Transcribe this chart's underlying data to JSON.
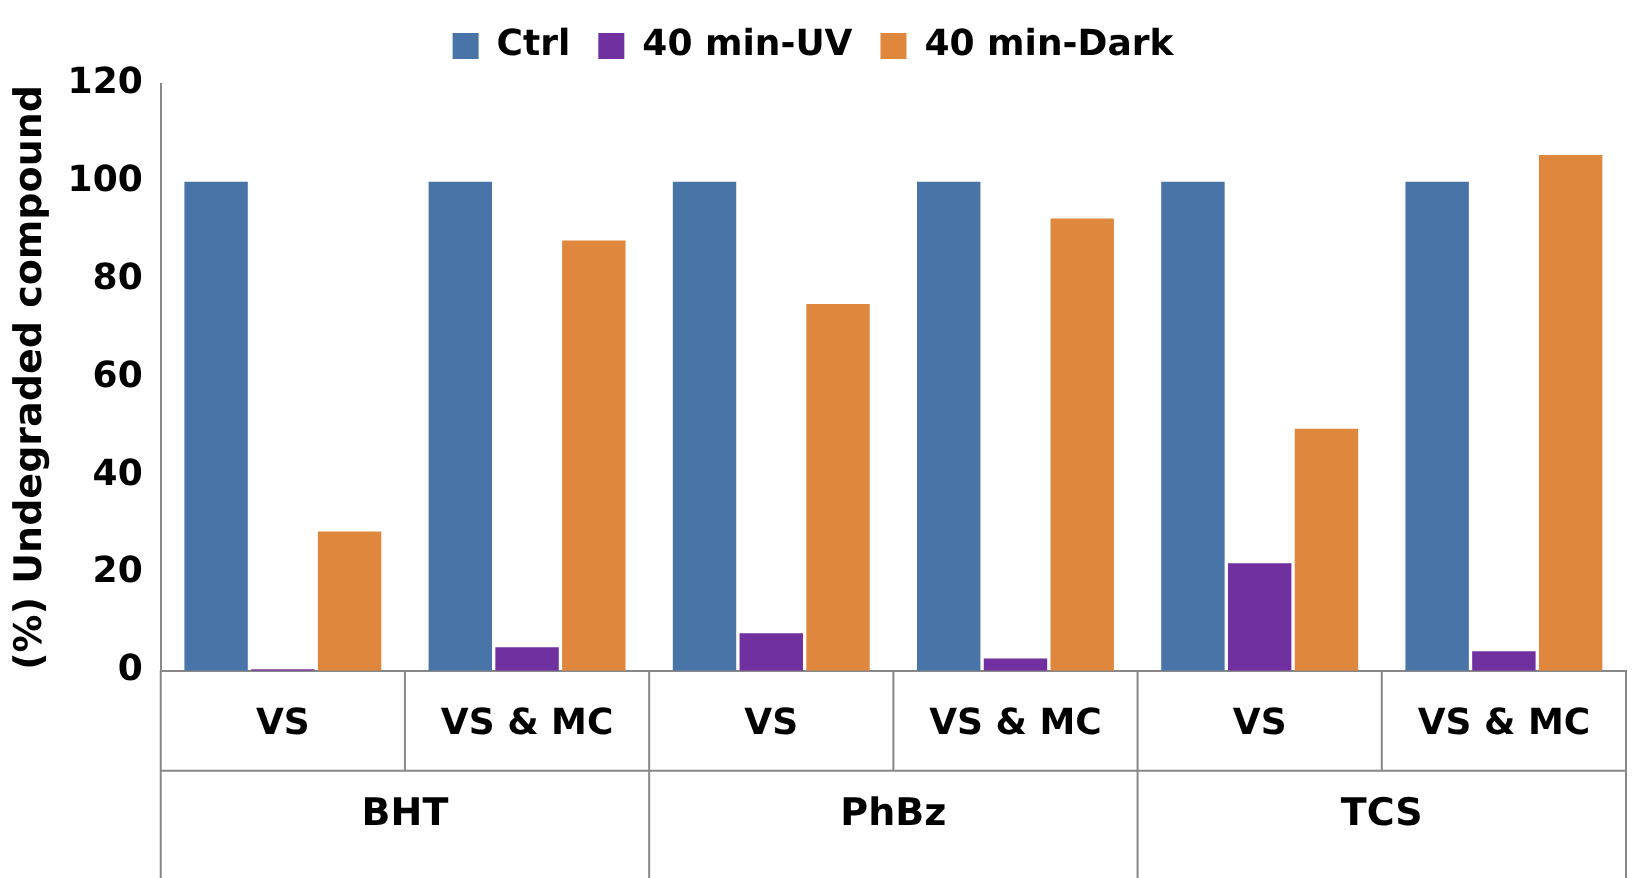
{
  "chart_data": {
    "type": "bar",
    "ylabel": "(%) Undegraded compound",
    "categories": [
      "VS",
      "VS & MC",
      "VS",
      "VS & MC",
      "VS",
      "VS & MC"
    ],
    "series": [
      {
        "name": "Ctrl",
        "color": "#4874a8",
        "values": [
          100,
          100,
          100,
          100,
          100,
          100
        ]
      },
      {
        "name": "40 min-UV",
        "color": "#7030a0",
        "values": [
          0.3,
          4.8,
          7.7,
          2.5,
          22,
          4
        ]
      },
      {
        "name": "40 min-Dark",
        "color": "#e0873e",
        "values": [
          28.5,
          88,
          75,
          92.5,
          49.5,
          105.5
        ]
      }
    ],
    "ylim": [
      0,
      120
    ],
    "yticks": [
      0,
      20,
      40,
      60,
      80,
      100,
      120
    ],
    "grid": false,
    "legend": "top",
    "annotations": [
      "BHT",
      "PhBz",
      "TCS"
    ]
  }
}
